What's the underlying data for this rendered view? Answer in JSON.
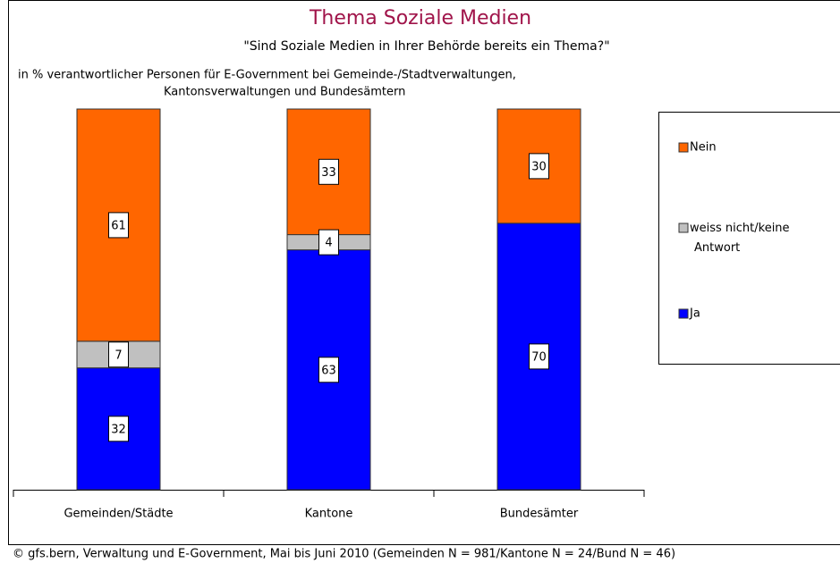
{
  "chart_data": {
    "type": "stacked_bar",
    "title": "Thema Soziale Medien",
    "subtitle": "\"Sind Soziale Medien in Ihrer Behörde bereits ein Thema?\"",
    "note": [
      "in % verantwortlicher Personen für E-Government bei Gemeinde-/Stadtverwaltungen,",
      "Kantonsverwaltungen und Bundesämtern"
    ],
    "source": "© gfs.bern, Verwaltung und E-Government, Mai bis Juni 2010 (Gemeinden N = 981/Kantone N = 24/Bund N = 46)",
    "categories": [
      "Gemeinden/Städte",
      "Kantone",
      "Bundesämter"
    ],
    "ylim": [
      0,
      100
    ],
    "series": [
      {
        "name": "Ja",
        "color": "#0000ff",
        "values": [
          32,
          63,
          70
        ]
      },
      {
        "name": "weiss nicht/keine Antwort",
        "color": "#c0c0c0",
        "values": [
          7,
          4,
          null
        ]
      },
      {
        "name": "Nein",
        "color": "#ff6600",
        "values": [
          61,
          33,
          30
        ]
      }
    ]
  }
}
